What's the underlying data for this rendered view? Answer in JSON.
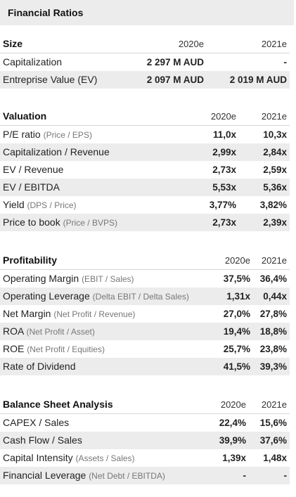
{
  "title": "Financial Ratios",
  "size": {
    "header": "Size",
    "cols": [
      "2020e",
      "2021e"
    ],
    "rows": [
      {
        "label": "Capitalization",
        "v": [
          "2 297 M AUD",
          "-"
        ]
      },
      {
        "label": "Entreprise Value (EV)",
        "v": [
          "2 097 M AUD",
          "2 019 M AUD"
        ]
      }
    ]
  },
  "valuation": {
    "header": "Valuation",
    "cols": [
      "2020e",
      "2021e"
    ],
    "rows": [
      {
        "label": "P/E ratio",
        "sub": "(Price / EPS)",
        "v": [
          "11,0x",
          "10,3x"
        ]
      },
      {
        "label": "Capitalization / Revenue",
        "v": [
          "2,99x",
          "2,84x"
        ]
      },
      {
        "label": "EV / Revenue",
        "v": [
          "2,73x",
          "2,59x"
        ]
      },
      {
        "label": "EV / EBITDA",
        "v": [
          "5,53x",
          "5,36x"
        ]
      },
      {
        "label": "Yield",
        "sub": "(DPS / Price)",
        "v": [
          "3,77%",
          "3,82%"
        ]
      },
      {
        "label": "Price to book",
        "sub": "(Price / BVPS)",
        "v": [
          "2,73x",
          "2,39x"
        ]
      }
    ]
  },
  "profitability": {
    "header": "Profitability",
    "cols": [
      "2020e",
      "2021e"
    ],
    "rows": [
      {
        "label": "Operating Margin",
        "sub": "(EBIT / Sales)",
        "v": [
          "37,5%",
          "36,4%"
        ]
      },
      {
        "label": "Operating Leverage",
        "sub": "(Delta EBIT / Delta Sales)",
        "v": [
          "1,31x",
          "0,44x"
        ]
      },
      {
        "label": "Net Margin",
        "sub": "(Net Profit / Revenue)",
        "v": [
          "27,0%",
          "27,8%"
        ]
      },
      {
        "label": "ROA",
        "sub": "(Net Profit / Asset)",
        "v": [
          "19,4%",
          "18,8%"
        ]
      },
      {
        "label": "ROE",
        "sub": "(Net Profit / Equities)",
        "v": [
          "25,7%",
          "23,8%"
        ]
      },
      {
        "label": "Rate of Dividend",
        "v": [
          "41,5%",
          "39,3%"
        ]
      }
    ]
  },
  "balance": {
    "header": "Balance Sheet Analysis",
    "cols": [
      "2020e",
      "2021e"
    ],
    "rows": [
      {
        "label": "CAPEX / Sales",
        "v": [
          "22,4%",
          "15,6%"
        ]
      },
      {
        "label": "Cash Flow / Sales",
        "v": [
          "39,9%",
          "37,6%"
        ]
      },
      {
        "label": "Capital Intensity",
        "sub": "(Assets / Sales)",
        "v": [
          "1,39x",
          "1,48x"
        ]
      },
      {
        "label": "Financial Leverage",
        "sub": "(Net Debt / EBITDA)",
        "v": [
          "-",
          "-"
        ]
      }
    ]
  }
}
